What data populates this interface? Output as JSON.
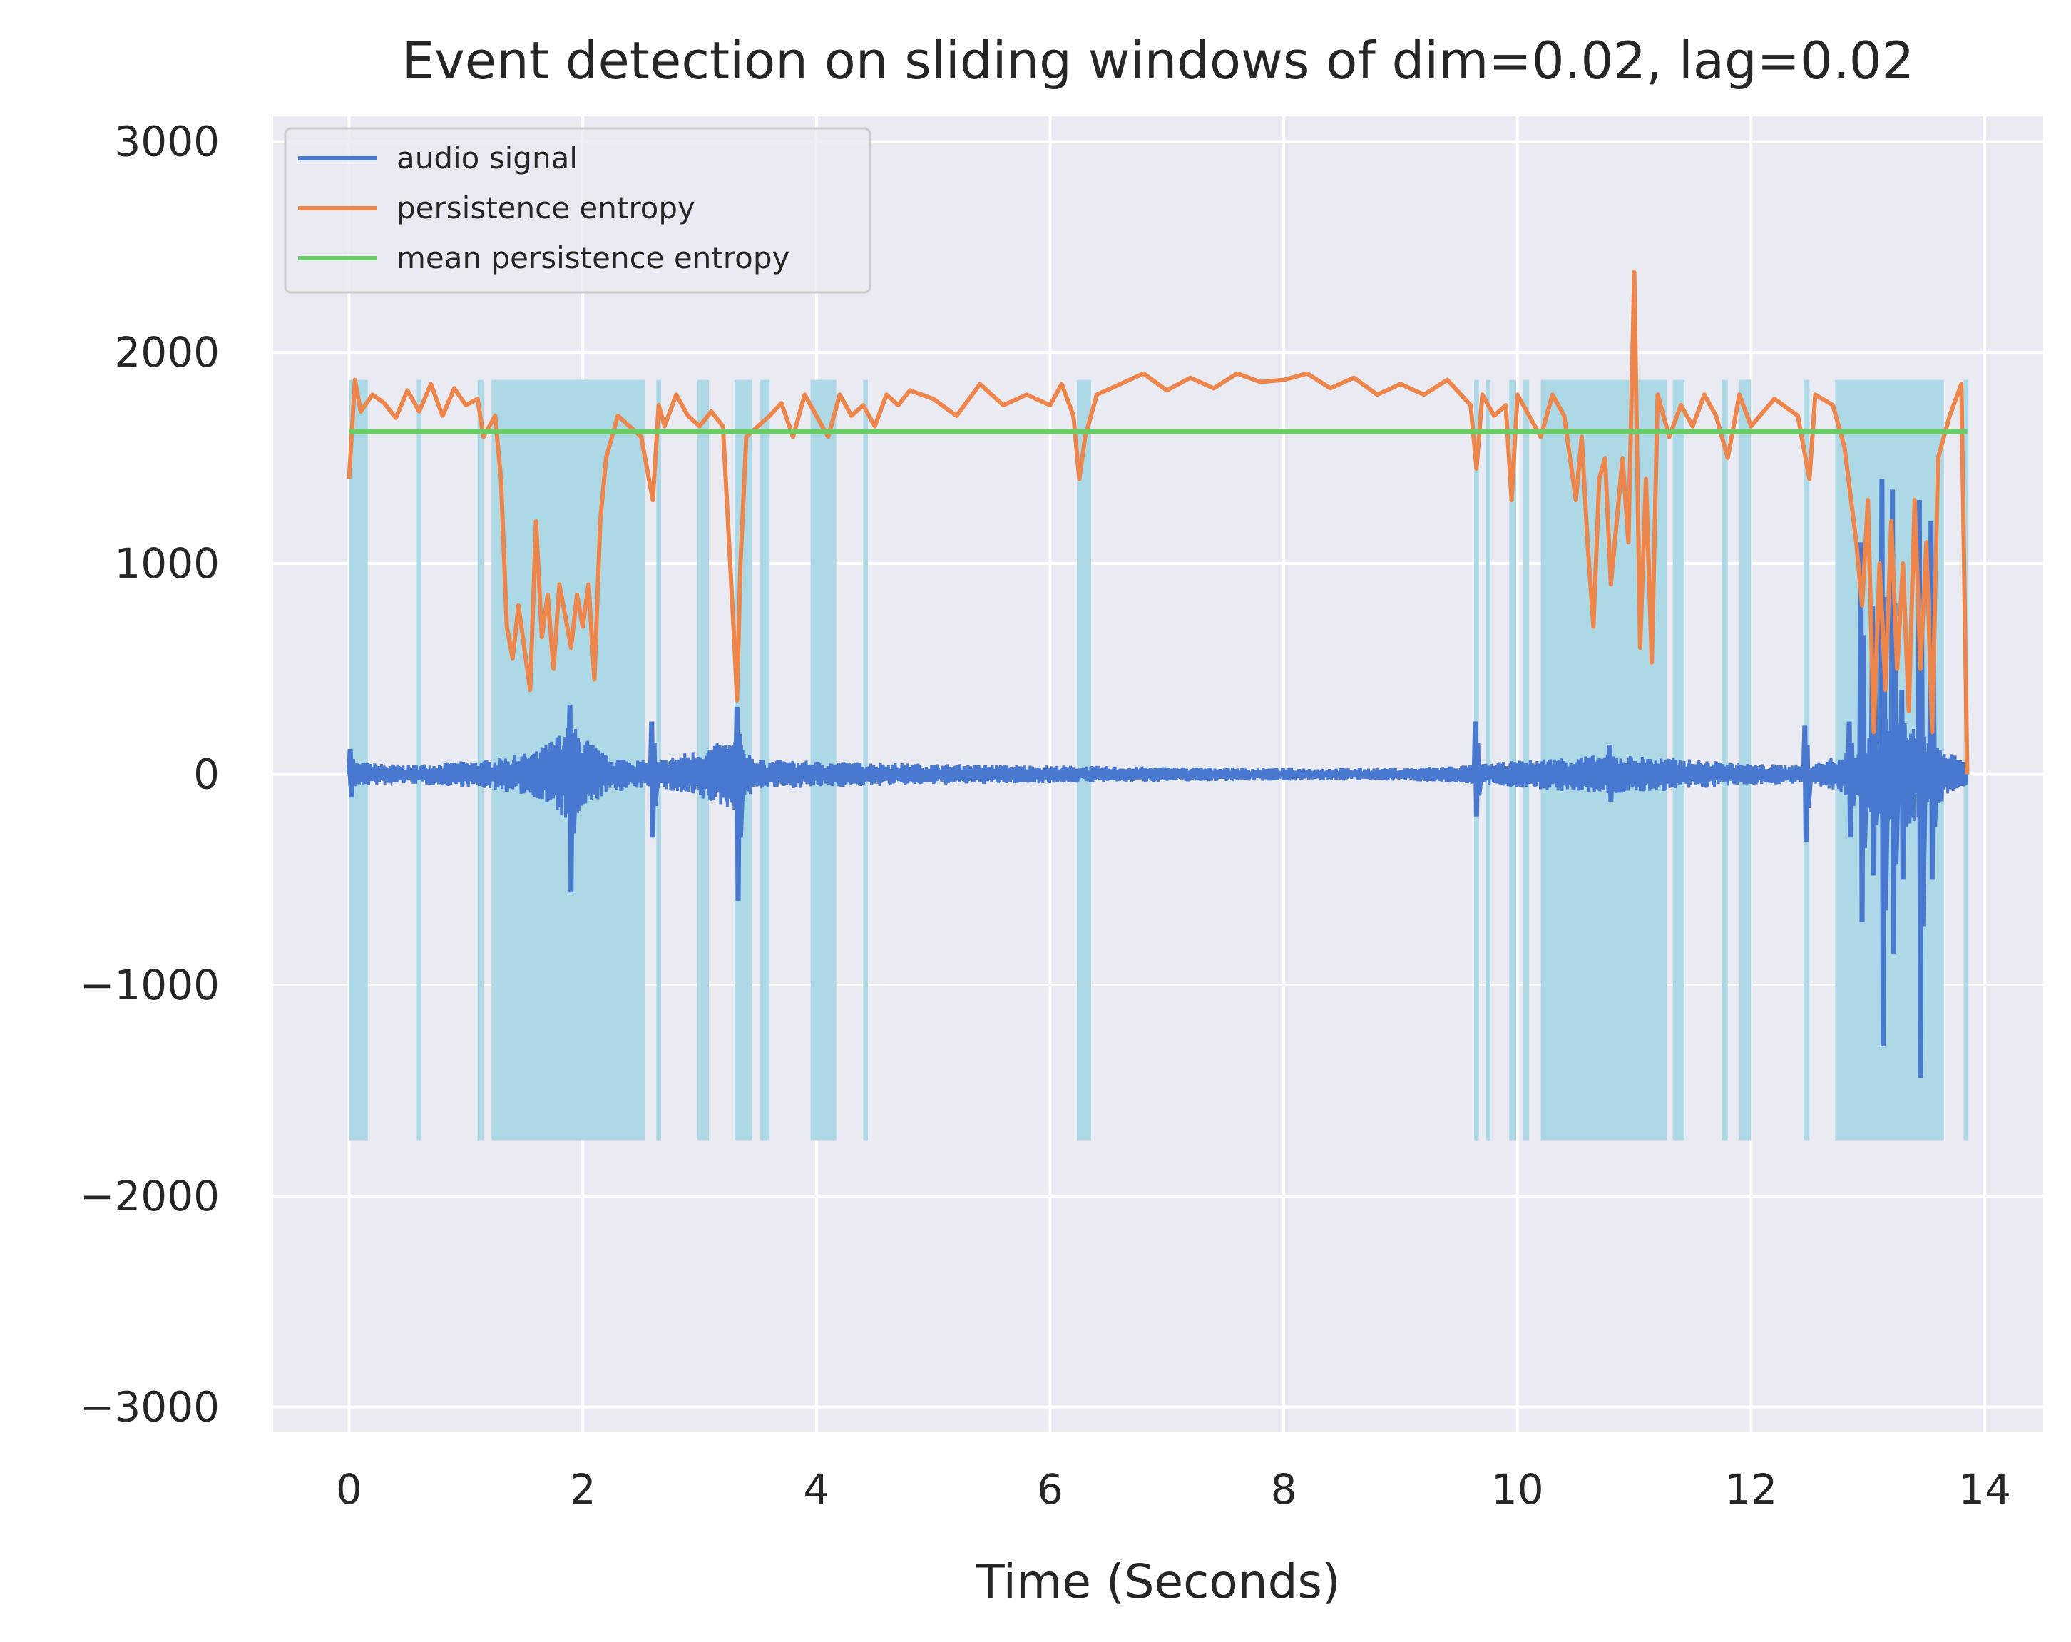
{
  "chart_data": {
    "type": "line",
    "title": "Event detection on sliding windows of dim=0.02, lag=0.02",
    "xlabel": "Time (Seconds)",
    "ylabel": "",
    "xlim": [
      -0.65,
      14.5
    ],
    "ylim": [
      -3120,
      3120
    ],
    "xticks": [
      0,
      2,
      4,
      6,
      8,
      10,
      12,
      14
    ],
    "yticks": [
      3000,
      2000,
      1000,
      0,
      -1000,
      -2000,
      -3000
    ],
    "xtick_labels": [
      "0",
      "2",
      "4",
      "6",
      "8",
      "10",
      "12",
      "14"
    ],
    "ytick_labels": [
      "3000",
      "2000",
      "1000",
      "0",
      "−1000",
      "−2000",
      "−3000"
    ],
    "grid": true,
    "legend_position": "upper-left",
    "colors": {
      "background": "#eaeaf2",
      "grid": "#ffffff",
      "audio": "#4878d0",
      "entropy": "#ee854a",
      "mean": "#6acc64",
      "event": "#add8e6"
    },
    "series": [
      {
        "name": "audio signal",
        "color": "#4878d0",
        "envelope": [
          [
            0,
            60
          ],
          [
            0.5,
            45
          ],
          [
            1.2,
            70
          ],
          [
            1.6,
            110
          ],
          [
            1.9,
            240
          ],
          [
            2.2,
            90
          ],
          [
            2.6,
            60
          ],
          [
            3.3,
            170
          ],
          [
            3.5,
            70
          ],
          [
            5,
            50
          ],
          [
            7,
            35
          ],
          [
            8,
            30
          ],
          [
            9,
            30
          ],
          [
            9.6,
            45
          ],
          [
            10.2,
            75
          ],
          [
            10.8,
            95
          ],
          [
            11.4,
            75
          ],
          [
            12,
            50
          ],
          [
            12.5,
            45
          ],
          [
            12.9,
            120
          ],
          [
            13.2,
            300
          ],
          [
            13.5,
            180
          ],
          [
            13.85,
            50
          ]
        ],
        "spikes": [
          [
            0.02,
            120,
            -110
          ],
          [
            0.35,
            30,
            -40
          ],
          [
            1.9,
            330,
            -560
          ],
          [
            2.6,
            250,
            -300
          ],
          [
            3.33,
            320,
            -600
          ],
          [
            9.65,
            250,
            -200
          ],
          [
            10.8,
            140,
            -130
          ],
          [
            12.47,
            230,
            -320
          ],
          [
            12.85,
            250,
            -300
          ],
          [
            12.95,
            1100,
            -700
          ],
          [
            13.05,
            800,
            -480
          ],
          [
            13.13,
            1400,
            -1290
          ],
          [
            13.22,
            1350,
            -850
          ],
          [
            13.3,
            400,
            -500
          ],
          [
            13.45,
            1300,
            -1440
          ],
          [
            13.55,
            1200,
            -500
          ]
        ]
      },
      {
        "name": "persistence entropy",
        "color": "#ee854a",
        "points": [
          [
            0,
            1400
          ],
          [
            0.05,
            1870
          ],
          [
            0.1,
            1720
          ],
          [
            0.2,
            1800
          ],
          [
            0.3,
            1760
          ],
          [
            0.4,
            1690
          ],
          [
            0.5,
            1820
          ],
          [
            0.6,
            1720
          ],
          [
            0.7,
            1850
          ],
          [
            0.8,
            1700
          ],
          [
            0.9,
            1830
          ],
          [
            1.0,
            1750
          ],
          [
            1.1,
            1780
          ],
          [
            1.15,
            1600
          ],
          [
            1.25,
            1700
          ],
          [
            1.3,
            1400
          ],
          [
            1.35,
            700
          ],
          [
            1.4,
            550
          ],
          [
            1.45,
            800
          ],
          [
            1.5,
            600
          ],
          [
            1.55,
            400
          ],
          [
            1.6,
            1200
          ],
          [
            1.65,
            650
          ],
          [
            1.7,
            850
          ],
          [
            1.75,
            500
          ],
          [
            1.8,
            900
          ],
          [
            1.85,
            750
          ],
          [
            1.9,
            600
          ],
          [
            1.95,
            850
          ],
          [
            2.0,
            700
          ],
          [
            2.05,
            900
          ],
          [
            2.1,
            450
          ],
          [
            2.15,
            1200
          ],
          [
            2.2,
            1500
          ],
          [
            2.3,
            1700
          ],
          [
            2.4,
            1650
          ],
          [
            2.5,
            1600
          ],
          [
            2.6,
            1300
          ],
          [
            2.65,
            1750
          ],
          [
            2.7,
            1650
          ],
          [
            2.8,
            1800
          ],
          [
            2.9,
            1700
          ],
          [
            3.0,
            1650
          ],
          [
            3.1,
            1720
          ],
          [
            3.2,
            1650
          ],
          [
            3.3,
            600
          ],
          [
            3.32,
            350
          ],
          [
            3.35,
            1000
          ],
          [
            3.4,
            1600
          ],
          [
            3.5,
            1650
          ],
          [
            3.6,
            1700
          ],
          [
            3.7,
            1760
          ],
          [
            3.8,
            1600
          ],
          [
            3.9,
            1800
          ],
          [
            4.0,
            1700
          ],
          [
            4.1,
            1600
          ],
          [
            4.2,
            1800
          ],
          [
            4.3,
            1700
          ],
          [
            4.4,
            1750
          ],
          [
            4.5,
            1650
          ],
          [
            4.6,
            1800
          ],
          [
            4.7,
            1750
          ],
          [
            4.8,
            1820
          ],
          [
            5.0,
            1780
          ],
          [
            5.2,
            1700
          ],
          [
            5.4,
            1850
          ],
          [
            5.6,
            1750
          ],
          [
            5.8,
            1800
          ],
          [
            6.0,
            1750
          ],
          [
            6.1,
            1850
          ],
          [
            6.2,
            1700
          ],
          [
            6.25,
            1400
          ],
          [
            6.3,
            1600
          ],
          [
            6.4,
            1800
          ],
          [
            6.6,
            1850
          ],
          [
            6.8,
            1900
          ],
          [
            7.0,
            1820
          ],
          [
            7.2,
            1880
          ],
          [
            7.4,
            1830
          ],
          [
            7.6,
            1900
          ],
          [
            7.8,
            1860
          ],
          [
            8.0,
            1870
          ],
          [
            8.2,
            1900
          ],
          [
            8.4,
            1830
          ],
          [
            8.6,
            1880
          ],
          [
            8.8,
            1800
          ],
          [
            9.0,
            1850
          ],
          [
            9.2,
            1800
          ],
          [
            9.4,
            1870
          ],
          [
            9.6,
            1750
          ],
          [
            9.65,
            1450
          ],
          [
            9.7,
            1800
          ],
          [
            9.8,
            1700
          ],
          [
            9.9,
            1750
          ],
          [
            9.95,
            1300
          ],
          [
            10.0,
            1800
          ],
          [
            10.1,
            1700
          ],
          [
            10.2,
            1600
          ],
          [
            10.3,
            1800
          ],
          [
            10.4,
            1700
          ],
          [
            10.5,
            1300
          ],
          [
            10.55,
            1600
          ],
          [
            10.6,
            1100
          ],
          [
            10.65,
            700
          ],
          [
            10.7,
            1400
          ],
          [
            10.75,
            1500
          ],
          [
            10.8,
            900
          ],
          [
            10.85,
            1200
          ],
          [
            10.9,
            1500
          ],
          [
            10.95,
            1100
          ],
          [
            11.0,
            2380
          ],
          [
            11.05,
            600
          ],
          [
            11.1,
            1400
          ],
          [
            11.15,
            530
          ],
          [
            11.2,
            1800
          ],
          [
            11.3,
            1600
          ],
          [
            11.4,
            1750
          ],
          [
            11.5,
            1650
          ],
          [
            11.6,
            1800
          ],
          [
            11.7,
            1700
          ],
          [
            11.8,
            1500
          ],
          [
            11.9,
            1800
          ],
          [
            12.0,
            1650
          ],
          [
            12.2,
            1780
          ],
          [
            12.4,
            1700
          ],
          [
            12.5,
            1400
          ],
          [
            12.55,
            1800
          ],
          [
            12.7,
            1750
          ],
          [
            12.8,
            1550
          ],
          [
            12.9,
            1100
          ],
          [
            12.95,
            800
          ],
          [
            13.0,
            1300
          ],
          [
            13.05,
            200
          ],
          [
            13.1,
            1000
          ],
          [
            13.15,
            400
          ],
          [
            13.2,
            1200
          ],
          [
            13.25,
            500
          ],
          [
            13.3,
            1000
          ],
          [
            13.35,
            300
          ],
          [
            13.4,
            1300
          ],
          [
            13.45,
            500
          ],
          [
            13.5,
            1100
          ],
          [
            13.55,
            200
          ],
          [
            13.6,
            1500
          ],
          [
            13.7,
            1700
          ],
          [
            13.8,
            1850
          ],
          [
            13.85,
            0
          ]
        ]
      },
      {
        "name": "mean persistence entropy",
        "color": "#6acc64",
        "points": [
          [
            0,
            1625
          ],
          [
            13.85,
            1625
          ]
        ]
      }
    ],
    "event_band": [
      -1735,
      1870
    ],
    "event_regions": [
      [
        0,
        0.16
      ],
      [
        0.58,
        0.62
      ],
      [
        1.1,
        1.15
      ],
      [
        1.22,
        2.53
      ],
      [
        2.63,
        2.67
      ],
      [
        2.98,
        3.08
      ],
      [
        3.3,
        3.45
      ],
      [
        3.52,
        3.6
      ],
      [
        3.95,
        4.17
      ],
      [
        4.4,
        4.44
      ],
      [
        6.23,
        6.35
      ],
      [
        9.63,
        9.67
      ],
      [
        9.73,
        9.77
      ],
      [
        9.93,
        9.99
      ],
      [
        10.05,
        10.1
      ],
      [
        10.2,
        11.28
      ],
      [
        11.33,
        11.43
      ],
      [
        11.75,
        11.8
      ],
      [
        11.9,
        12.0
      ],
      [
        12.45,
        12.5
      ],
      [
        12.72,
        13.65
      ],
      [
        13.82,
        13.86
      ]
    ]
  }
}
